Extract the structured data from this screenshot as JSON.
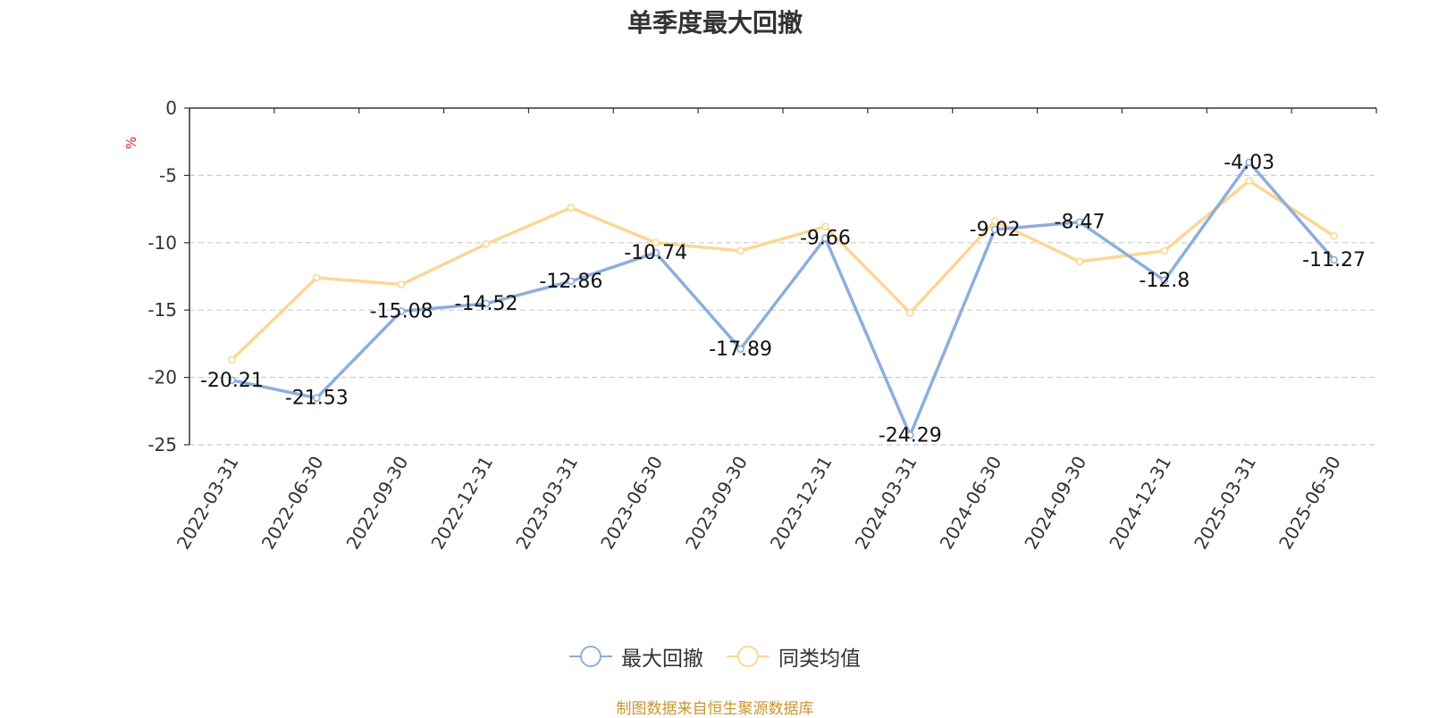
{
  "chart_data": {
    "type": "line",
    "title": "单季度最大回撤",
    "ylabel": "%",
    "xlabel": "",
    "ylim": [
      -25,
      0
    ],
    "yticks": [
      0,
      -5,
      -10,
      -15,
      -20,
      -25
    ],
    "grid": true,
    "legend_position": "bottom",
    "categories": [
      "2022-03-31",
      "2022-06-30",
      "2022-09-30",
      "2022-12-31",
      "2023-03-31",
      "2023-06-30",
      "2023-09-30",
      "2023-12-31",
      "2024-03-31",
      "2024-06-30",
      "2024-09-30",
      "2024-12-31",
      "2025-03-31",
      "2025-06-30"
    ],
    "series": [
      {
        "name": "最大回撤",
        "color": "#8eaedb",
        "values": [
          -20.21,
          -21.53,
          -15.08,
          -14.52,
          -12.86,
          -10.74,
          -17.89,
          -9.66,
          -24.29,
          -9.02,
          -8.47,
          -12.8,
          -4.03,
          -11.27
        ],
        "labels": [
          "-20.21",
          "-21.53",
          "-15.08",
          "-14.52",
          "-12.86",
          "-10.74",
          "-17.89",
          "-9.66",
          "-24.29",
          "-9.02",
          "-8.47",
          "-12.8",
          "-4.03",
          "-11.27"
        ]
      },
      {
        "name": "同类均值",
        "color": "#fbd795",
        "values": [
          -18.7,
          -12.6,
          -13.1,
          -10.1,
          -7.4,
          -10.0,
          -10.6,
          -8.8,
          -15.2,
          -8.4,
          -11.4,
          -10.6,
          -5.4,
          -9.5
        ]
      }
    ]
  },
  "source": "制图数据来自恒生聚源数据库"
}
